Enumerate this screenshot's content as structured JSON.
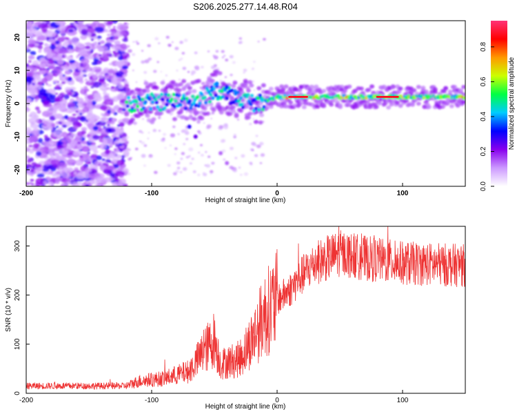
{
  "title": "S206.2025.277.14.48.R04",
  "chart_data": [
    {
      "type": "heatmap",
      "xlabel": "Height of straight line (km)",
      "ylabel": "Frequency (Hz)",
      "xlim": [
        -200,
        150
      ],
      "ylim": [
        -25,
        25
      ],
      "xticks": [
        -200,
        -100,
        0,
        100
      ],
      "yticks": [
        -20,
        -10,
        0,
        10,
        20
      ],
      "colorbar": {
        "label": "Normalized spectral amplitude",
        "range": [
          0,
          0.95
        ],
        "ticks": [
          0.0,
          0.2,
          0.4,
          0.6,
          0.8
        ],
        "tick_labels": [
          "0.0",
          "0.2",
          "0.4",
          "0.6",
          "0.8"
        ],
        "colors": [
          "#ffffff",
          "#cc99ff",
          "#8800ee",
          "#0000ff",
          "#00ccff",
          "#00ff44",
          "#ccff00",
          "#ff9900",
          "#ff0000",
          "#ff3377"
        ]
      },
      "ridge": {
        "start_km": -120,
        "center_hz": [
          {
            "x": -120,
            "y": 0
          },
          {
            "x": -60,
            "y": 1
          },
          {
            "x": -50,
            "y": 4
          },
          {
            "x": -35,
            "y": 2
          },
          {
            "x": -15,
            "y": 0
          },
          {
            "x": 0,
            "y": 2
          },
          {
            "x": 150,
            "y": 2
          }
        ],
        "peak_amplitude": 0.92
      }
    },
    {
      "type": "line",
      "xlabel": "Height of straight line (km)",
      "ylabel": "SNR (10 * v/v)",
      "xlim": [
        -200,
        150
      ],
      "ylim": [
        0,
        340
      ],
      "xticks": [
        -200,
        -100,
        0,
        100
      ],
      "yticks": [
        0,
        100,
        200,
        300
      ],
      "color": "#ee3333",
      "series_envelope": [
        {
          "x": -200,
          "y": 15
        },
        {
          "x": -120,
          "y": 15
        },
        {
          "x": -110,
          "y": 25
        },
        {
          "x": -90,
          "y": 30
        },
        {
          "x": -70,
          "y": 45
        },
        {
          "x": -60,
          "y": 80
        },
        {
          "x": -50,
          "y": 110
        },
        {
          "x": -45,
          "y": 60
        },
        {
          "x": -30,
          "y": 70
        },
        {
          "x": -20,
          "y": 110
        },
        {
          "x": -10,
          "y": 160
        },
        {
          "x": 0,
          "y": 190
        },
        {
          "x": 10,
          "y": 210
        },
        {
          "x": 20,
          "y": 240
        },
        {
          "x": 30,
          "y": 265
        },
        {
          "x": 50,
          "y": 285
        },
        {
          "x": 70,
          "y": 275
        },
        {
          "x": 100,
          "y": 265
        },
        {
          "x": 130,
          "y": 262
        },
        {
          "x": 150,
          "y": 260
        }
      ]
    }
  ]
}
